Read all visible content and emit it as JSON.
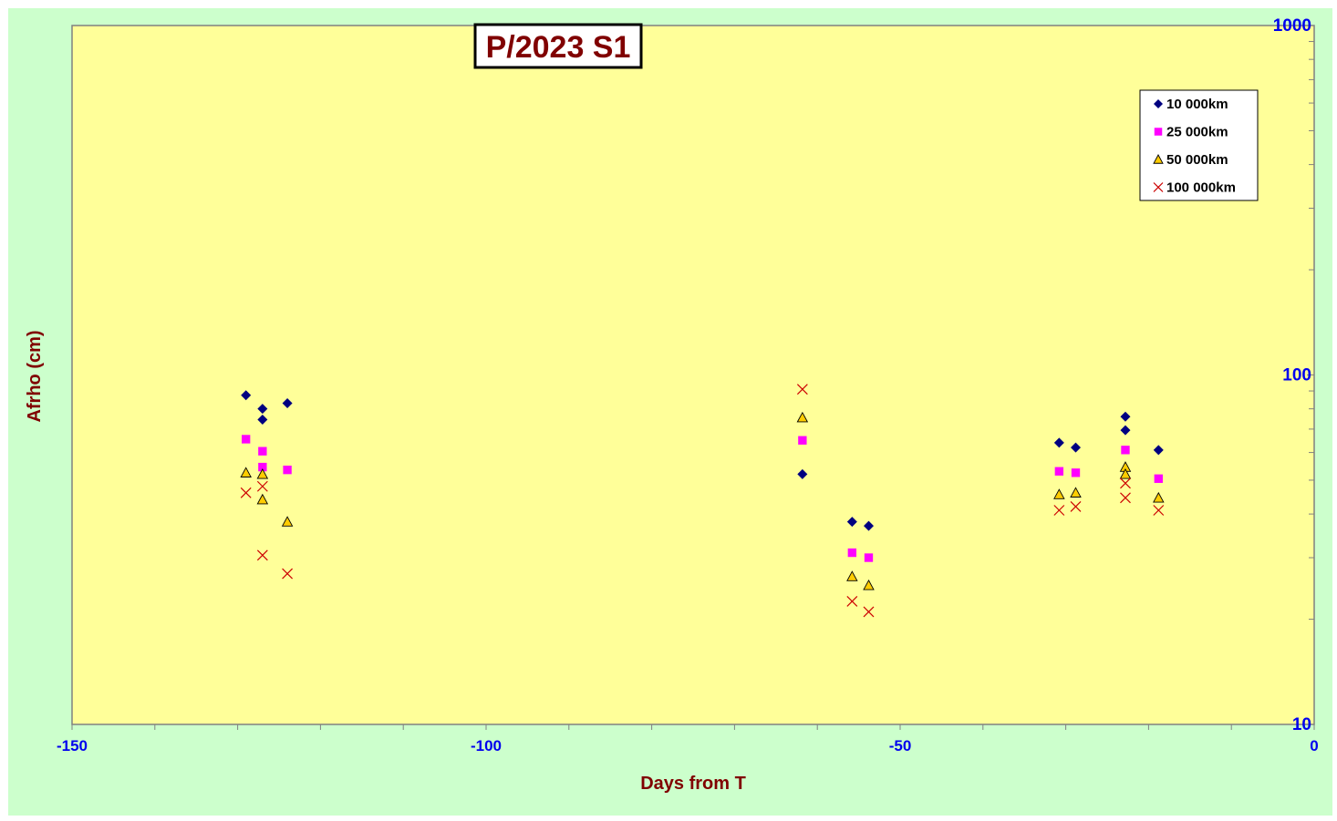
{
  "chart_data": {
    "type": "scatter",
    "title": "P/2023 S1",
    "xlabel": "Days from T",
    "ylabel": "Afrho (cm)",
    "xlim": [
      -150,
      0
    ],
    "ylim": [
      10,
      1000
    ],
    "y_scale": "log",
    "x_ticks": [
      "-150",
      "-100",
      "-50",
      "0"
    ],
    "y_ticks": [
      "10",
      "100",
      "1000"
    ],
    "grid": false,
    "legend_position": "top-right",
    "colors": {
      "plot_bg": "#ffff99",
      "chart_bg": "#ccffcc",
      "tick_text": "#0000ee",
      "title_text": "#800000"
    },
    "series": [
      {
        "name": "10 000km",
        "marker": "diamond",
        "color": "#000080",
        "x": [
          -129,
          -127,
          -127,
          -124,
          -61.8,
          -55.8,
          -53.8,
          -30.8,
          -28.8,
          -22.8,
          -22.8,
          -18.8
        ],
        "y": [
          87.5,
          80.0,
          74.5,
          83.0,
          52.0,
          38.0,
          37.0,
          64.0,
          62.0,
          76.0,
          69.5,
          61.0
        ]
      },
      {
        "name": "25 000km",
        "marker": "square",
        "color": "#ff00ff",
        "x": [
          -129,
          -127,
          -127,
          -124,
          -61.8,
          -55.8,
          -53.8,
          -30.8,
          -28.8,
          -22.8,
          -18.8
        ],
        "y": [
          65.5,
          60.5,
          54.5,
          53.5,
          65.0,
          31.0,
          30.0,
          53.0,
          52.5,
          61.0,
          50.5
        ]
      },
      {
        "name": "50 000km",
        "marker": "triangle",
        "color": "#ffcc00",
        "x": [
          -129,
          -127,
          -127,
          -124,
          -61.8,
          -55.8,
          -53.8,
          -30.8,
          -28.8,
          -22.8,
          -22.8,
          -18.8
        ],
        "y": [
          52.5,
          52.0,
          44.0,
          38.0,
          75.5,
          26.5,
          25.0,
          45.5,
          46.0,
          54.5,
          52.0,
          44.5
        ]
      },
      {
        "name": "100 000km",
        "marker": "x",
        "color": "#cc0000",
        "x": [
          -129,
          -127,
          -127,
          -124,
          -61.8,
          -55.8,
          -53.8,
          -30.8,
          -28.8,
          -22.8,
          -22.8,
          -18.8
        ],
        "y": [
          46.0,
          48.0,
          30.5,
          27.0,
          91.0,
          22.5,
          21.0,
          41.0,
          42.0,
          49.0,
          44.5,
          41.0
        ]
      }
    ]
  }
}
